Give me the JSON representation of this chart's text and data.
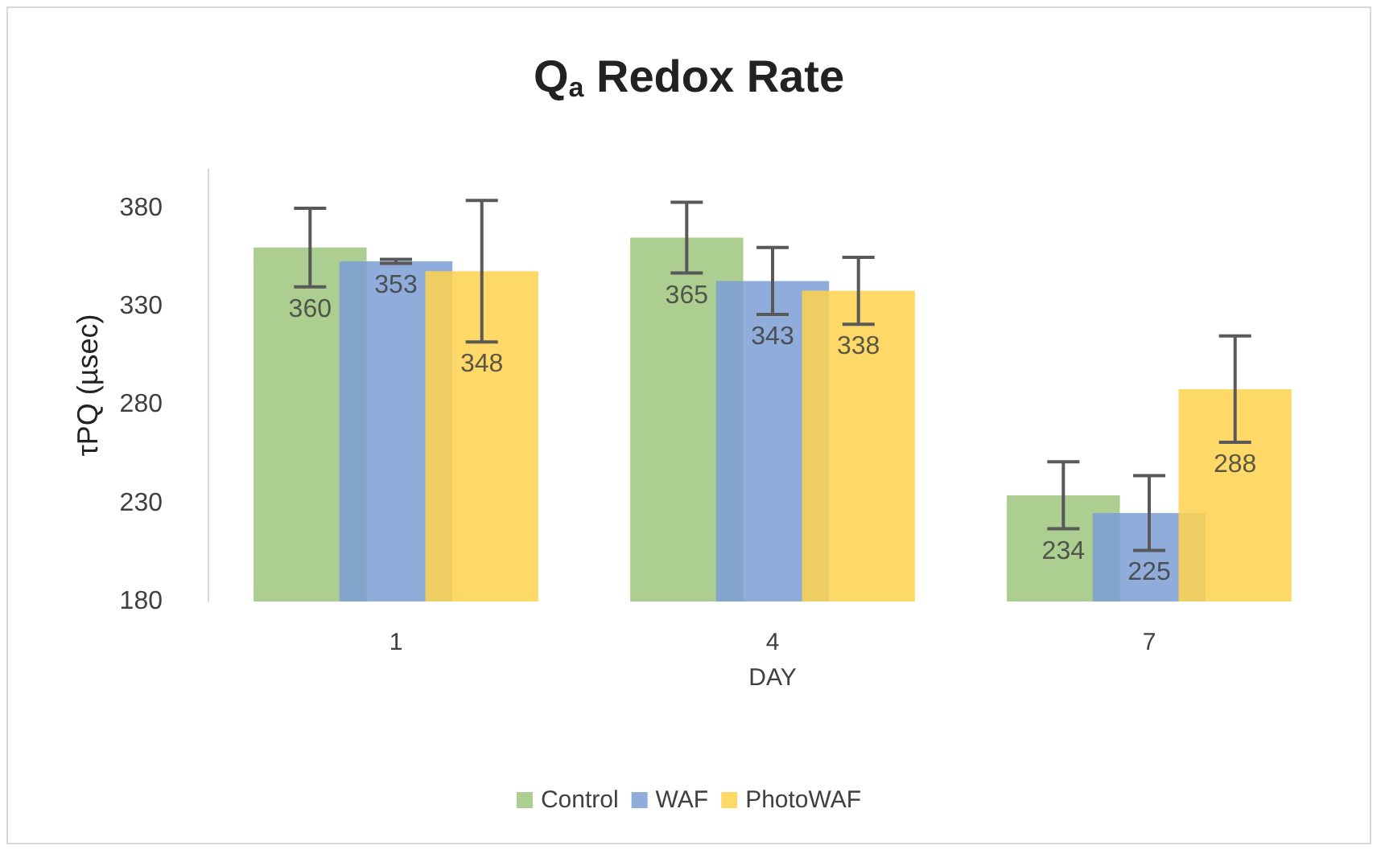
{
  "chart_data": {
    "type": "bar",
    "title": "Q$_{a}$ Redox Rate",
    "xlabel": "DAY",
    "ylabel": "τPQ (µsec)",
    "categories": [
      "1",
      "4",
      "7"
    ],
    "series": [
      {
        "name": "Control",
        "color": "#9dc57e",
        "values": [
          360,
          365,
          234
        ],
        "errors": [
          20,
          18,
          17
        ]
      },
      {
        "name": "WAF",
        "color": "#7b9dd5",
        "values": [
          353,
          343,
          225
        ],
        "errors": [
          1,
          17,
          19
        ]
      },
      {
        "name": "PhotoWAF",
        "color": "#ffd24d",
        "values": [
          348,
          338,
          288
        ],
        "errors": [
          36,
          17,
          27
        ]
      }
    ],
    "ylim": [
      180,
      400
    ],
    "yticks": [
      180,
      230,
      280,
      330,
      380
    ],
    "grid": false,
    "legend": "bottom",
    "data_labels": true
  }
}
